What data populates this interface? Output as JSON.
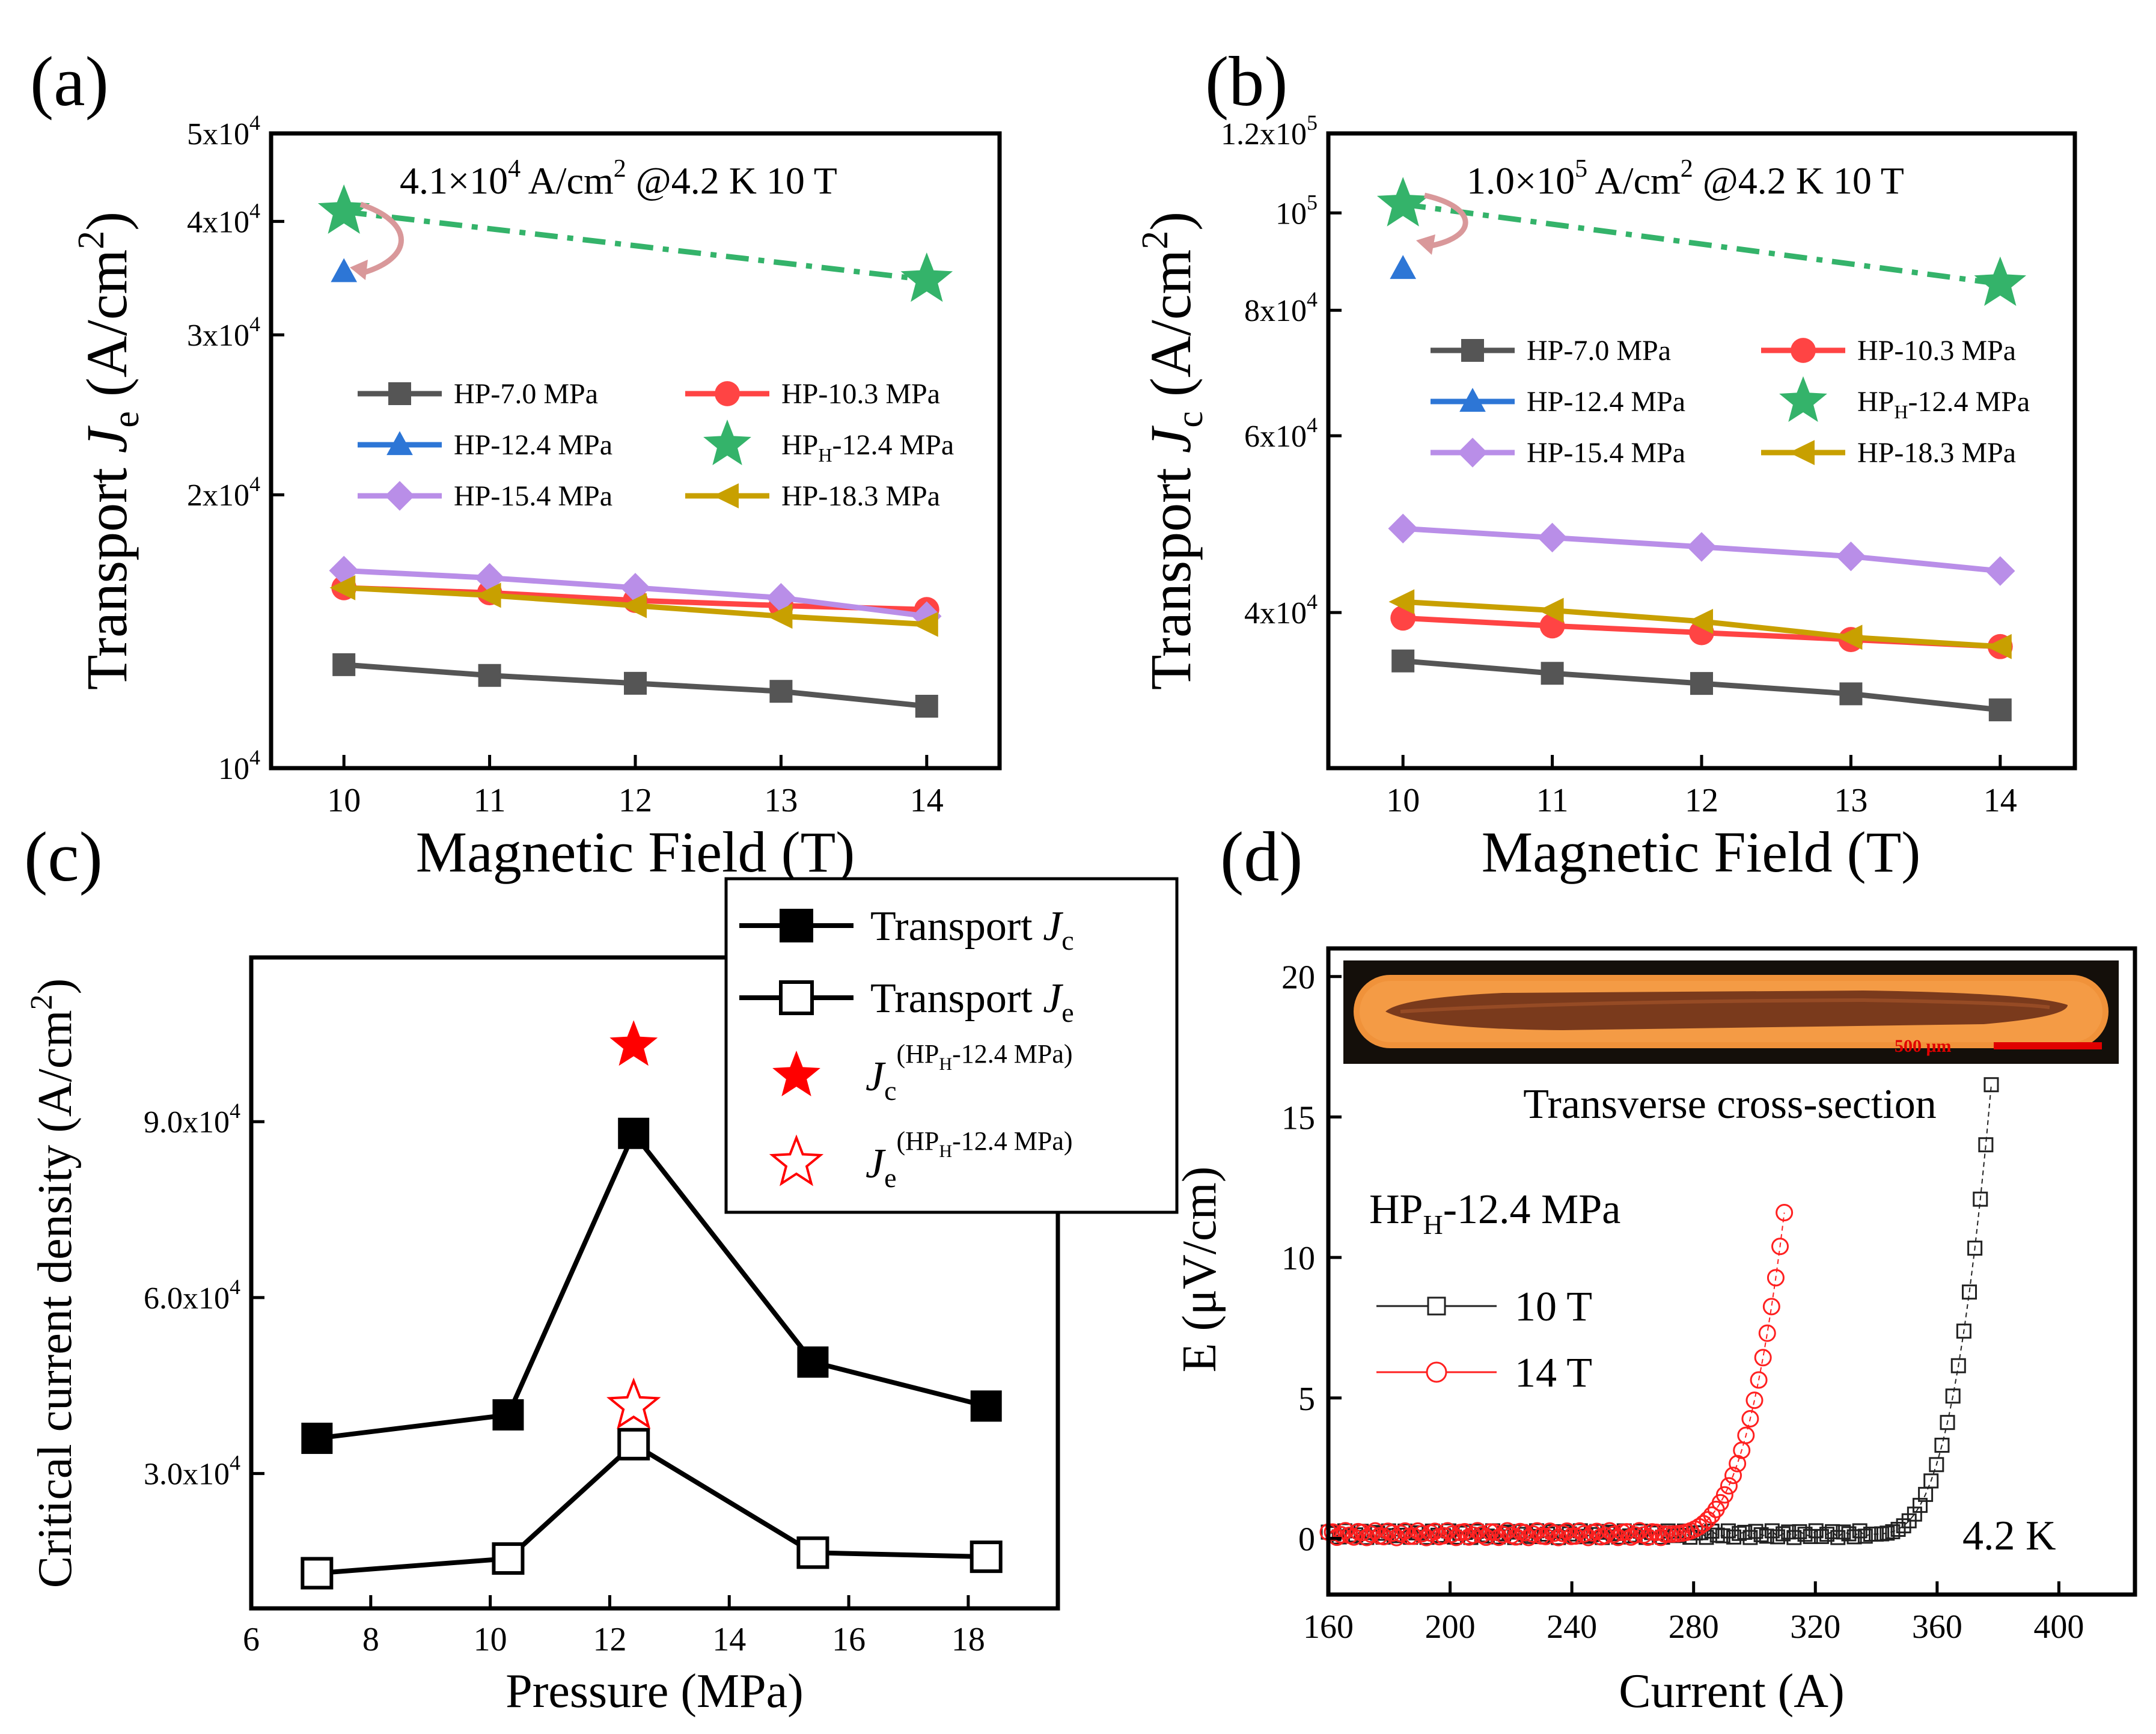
{
  "chart_data": [
    {
      "panel": "(a)",
      "type": "line",
      "xlabel": "Magnetic Field (T)",
      "ylabel_main": "Transport ",
      "ylabel_var": "J",
      "ylabel_sub": "e",
      "ylabel_unit": " (A/cm",
      "ylabel_sup": "2",
      "ylabel_close": ")",
      "yscale": "log",
      "xlim": [
        9.5,
        14.5
      ],
      "ylim": [
        10000,
        50000
      ],
      "xticks": [
        10,
        11,
        12,
        13,
        14
      ],
      "yticks": [
        {
          "value": 10000,
          "mant": "10",
          "exp": "4"
        },
        {
          "value": 20000,
          "mant": "2x10",
          "exp": "4"
        },
        {
          "value": 30000,
          "mant": "3x10",
          "exp": "4"
        },
        {
          "value": 40000,
          "mant": "4x10",
          "exp": "4"
        },
        {
          "value": 50000,
          "mant": "5x10",
          "exp": "4"
        }
      ],
      "annotation": {
        "text_main": "4.1×10",
        "text_sup": "4",
        "text_rest": " A/cm",
        "text_sup2": "2",
        "text_tail": " @4.2 K  10 T"
      },
      "series": [
        {
          "name": "HP-7.0 MPa",
          "color": "#555555",
          "marker": "square",
          "x": [
            10,
            11,
            12,
            13,
            14
          ],
          "values": [
            13000,
            12650,
            12400,
            12150,
            11700
          ]
        },
        {
          "name": "HP-10.3 MPa",
          "color": "#ff4444",
          "marker": "circle",
          "x": [
            10,
            11,
            12,
            13,
            14
          ],
          "values": [
            15800,
            15600,
            15300,
            15100,
            14950
          ]
        },
        {
          "name": "HP-12.4 MPa",
          "color": "#2d76d6",
          "marker": "triangle",
          "x": [
            10
          ],
          "values": [
            35200
          ]
        },
        {
          "name": "HP",
          "name_sub": "H",
          "name_rest": "-12.4 MPa",
          "color": "#34b36a",
          "marker": "star",
          "dashed": true,
          "x": [
            10,
            14
          ],
          "values": [
            41000,
            34500
          ]
        },
        {
          "name": "HP-15.4 MPa",
          "color": "#b98ee8",
          "marker": "diamond",
          "x": [
            10,
            11,
            12,
            13,
            14
          ],
          "values": [
            16500,
            16200,
            15800,
            15400,
            14700
          ]
        },
        {
          "name": "HP-18.3 MPa",
          "color": "#c8a000",
          "marker": "lefttriangle",
          "x": [
            10,
            11,
            12,
            13,
            14
          ],
          "values": [
            15800,
            15500,
            15100,
            14700,
            14400
          ]
        }
      ]
    },
    {
      "panel": "(b)",
      "type": "line",
      "xlabel": "Magnetic Field (T)",
      "ylabel_main": "Transport ",
      "ylabel_var": "J",
      "ylabel_sub": "c",
      "ylabel_unit": " (A/cm",
      "ylabel_sup": "2",
      "ylabel_close": ")",
      "yscale": "log",
      "xlim": [
        9.5,
        14.5
      ],
      "ylim": [
        28000,
        120000
      ],
      "xticks": [
        10,
        11,
        12,
        13,
        14
      ],
      "yticks": [
        {
          "value": 40000,
          "mant": "4x10",
          "exp": "4"
        },
        {
          "value": 60000,
          "mant": "6x10",
          "exp": "4"
        },
        {
          "value": 80000,
          "mant": "8x10",
          "exp": "4"
        },
        {
          "value": 100000,
          "mant": "10",
          "exp": "5"
        },
        {
          "value": 120000,
          "mant": "1.2x10",
          "exp": "5"
        }
      ],
      "annotation": {
        "text_main": "1.0×10",
        "text_sup": "5",
        "text_rest": " A/cm",
        "text_sup2": "2",
        "text_tail": " @4.2 K  10 T"
      },
      "series": [
        {
          "name": "HP-7.0 MPa",
          "color": "#555555",
          "marker": "square",
          "x": [
            10,
            11,
            12,
            13,
            14
          ],
          "values": [
            35800,
            34800,
            34000,
            33200,
            32000
          ]
        },
        {
          "name": "HP-10.3 MPa",
          "color": "#ff4444",
          "marker": "circle",
          "x": [
            10,
            11,
            12,
            13,
            14
          ],
          "values": [
            39500,
            38800,
            38200,
            37600,
            37000
          ]
        },
        {
          "name": "HP-12.4 MPa",
          "color": "#2d76d6",
          "marker": "triangle",
          "x": [
            10
          ],
          "values": [
            88000
          ]
        },
        {
          "name": "HP",
          "name_sub": "H",
          "name_rest": "-12.4 MPa",
          "color": "#34b36a",
          "marker": "star",
          "dashed": true,
          "x": [
            10,
            14
          ],
          "values": [
            102000,
            85000
          ]
        },
        {
          "name": "HP-15.4 MPa",
          "color": "#b98ee8",
          "marker": "diamond",
          "x": [
            10,
            11,
            12,
            13,
            14
          ],
          "values": [
            48500,
            47500,
            46500,
            45500,
            44000
          ]
        },
        {
          "name": "HP-18.3 MPa",
          "color": "#c8a000",
          "marker": "lefttriangle",
          "x": [
            10,
            11,
            12,
            13,
            14
          ],
          "values": [
            41000,
            40200,
            39200,
            37800,
            37000
          ]
        }
      ]
    },
    {
      "panel": "(c)",
      "type": "line",
      "xlabel": "Pressure (MPa)",
      "ylabel_main": "Critical current density ",
      "ylabel_unit": "(A/cm",
      "ylabel_sup": "2",
      "ylabel_close": ")",
      "xlim": [
        6,
        19.5
      ],
      "ylim": [
        7000,
        118000
      ],
      "xticks": [
        6,
        8,
        10,
        12,
        14,
        16,
        18
      ],
      "yticks": [
        {
          "value": 30000,
          "mant": "3.0x10",
          "exp": "4"
        },
        {
          "value": 60000,
          "mant": "6.0x10",
          "exp": "4"
        },
        {
          "value": 90000,
          "mant": "9.0x10",
          "exp": "4"
        }
      ],
      "series": [
        {
          "name": "Transport ",
          "name_var": "J",
          "name_sub": "c",
          "marker": "filled-square",
          "x": [
            7.1,
            10.3,
            12.4,
            15.4,
            18.3
          ],
          "values": [
            36000,
            40000,
            88000,
            49000,
            41500
          ]
        },
        {
          "name": "Transport ",
          "name_var": "J",
          "name_sub": "e",
          "marker": "open-square",
          "x": [
            7.1,
            10.3,
            12.4,
            15.4,
            18.3
          ],
          "values": [
            13000,
            15500,
            35000,
            16500,
            15800
          ]
        },
        {
          "name_var": "J",
          "name_sub": "c",
          "name_sup": "(HP",
          "name_supsub": "H",
          "name_suprest": "-12.4 MPa)",
          "marker": "filled-star",
          "color": "#ff0000",
          "x": [
            12.4
          ],
          "values": [
            103000
          ]
        },
        {
          "name_var": "J",
          "name_sub": "e",
          "name_sup": "(HP",
          "name_supsub": "H",
          "name_suprest": "-12.4 MPa)",
          "marker": "open-star",
          "color": "#ff0000",
          "x": [
            12.4
          ],
          "values": [
            41500
          ]
        }
      ]
    },
    {
      "panel": "(d)",
      "type": "scatter",
      "xlabel": "Current (A)",
      "ylabel": "E (μV/cm)",
      "xlim": [
        160,
        425
      ],
      "ylim": [
        -2,
        21
      ],
      "xticks": [
        160,
        200,
        240,
        280,
        320,
        360,
        400
      ],
      "yticks": [
        0,
        5,
        10,
        15,
        20
      ],
      "inset_title": "Transverse cross-section",
      "scale_bar": "500 μm",
      "sample_label_main": "HP",
      "sample_label_sub": "H",
      "sample_label_rest": "-12.4 MPa",
      "temperature": "4.2 K",
      "series": [
        {
          "name": "10 T",
          "color": "#222222",
          "marker": "open-square",
          "onset": 338,
          "end": 378,
          "ymax": 16.4
        },
        {
          "name": "14 T",
          "color": "#ff2020",
          "marker": "open-circle",
          "onset": 270,
          "end": 311,
          "ymax": 12.7
        }
      ]
    }
  ]
}
